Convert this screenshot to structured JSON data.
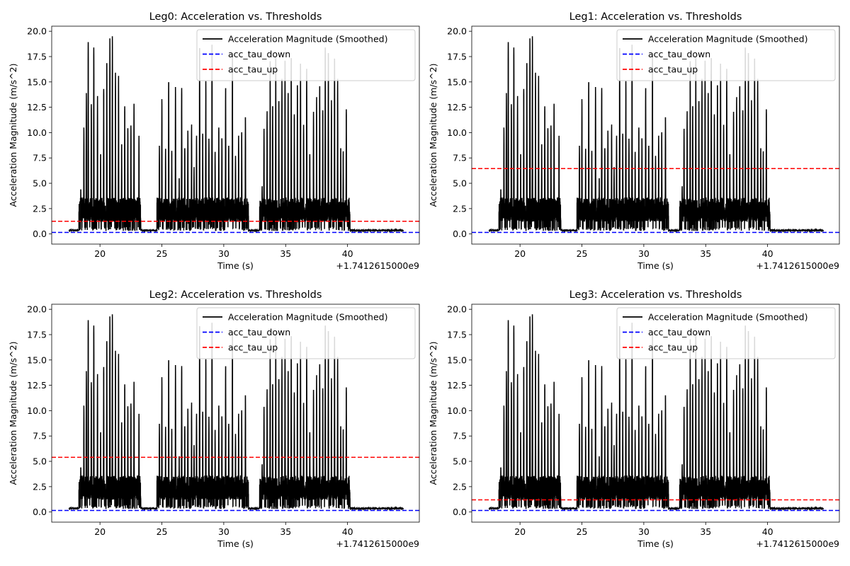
{
  "chart_data": [
    {
      "type": "line",
      "title": "Leg0: Acceleration vs. Thresholds",
      "xlabel": "Time (s)",
      "ylabel": "Acceleration Magnitude (m/s^2)",
      "x_offset_label": "+1.7412615000e9",
      "xlim": [
        16.1,
        45.8
      ],
      "ylim": [
        -1.0,
        20.5
      ],
      "xticks": [
        20,
        25,
        30,
        35,
        40
      ],
      "yticks": [
        0.0,
        2.5,
        5.0,
        7.5,
        10.0,
        12.5,
        15.0,
        17.5,
        20.0
      ],
      "legend": "top-right",
      "series": [
        {
          "name": "Acceleration Magnitude (Smoothed)",
          "color": "#000000",
          "style": "solid",
          "x_range": [
            17.5,
            44.5
          ]
        },
        {
          "name": "acc_tau_down",
          "color": "#0000ff",
          "style": "dashed",
          "value": 0.15
        },
        {
          "name": "acc_tau_up",
          "color": "#ff0000",
          "style": "dashed",
          "value": 1.25
        }
      ]
    },
    {
      "type": "line",
      "title": "Leg1: Acceleration vs. Thresholds",
      "xlabel": "Time (s)",
      "ylabel": "Acceleration Magnitude (m/s^2)",
      "x_offset_label": "+1.7412615000e9",
      "xlim": [
        16.1,
        45.8
      ],
      "ylim": [
        -1.0,
        20.5
      ],
      "xticks": [
        20,
        25,
        30,
        35,
        40
      ],
      "yticks": [
        0.0,
        2.5,
        5.0,
        7.5,
        10.0,
        12.5,
        15.0,
        17.5,
        20.0
      ],
      "legend": "top-right",
      "series": [
        {
          "name": "Acceleration Magnitude (Smoothed)",
          "color": "#000000",
          "style": "solid",
          "x_range": [
            17.5,
            44.5
          ]
        },
        {
          "name": "acc_tau_down",
          "color": "#0000ff",
          "style": "dashed",
          "value": 0.15
        },
        {
          "name": "acc_tau_up",
          "color": "#ff0000",
          "style": "dashed",
          "value": 6.45
        }
      ]
    },
    {
      "type": "line",
      "title": "Leg2: Acceleration vs. Thresholds",
      "xlabel": "Time (s)",
      "ylabel": "Acceleration Magnitude (m/s^2)",
      "x_offset_label": "+1.7412615000e9",
      "xlim": [
        16.1,
        45.8
      ],
      "ylim": [
        -1.0,
        20.5
      ],
      "xticks": [
        20,
        25,
        30,
        35,
        40
      ],
      "yticks": [
        0.0,
        2.5,
        5.0,
        7.5,
        10.0,
        12.5,
        15.0,
        17.5,
        20.0
      ],
      "legend": "top-right",
      "series": [
        {
          "name": "Acceleration Magnitude (Smoothed)",
          "color": "#000000",
          "style": "solid",
          "x_range": [
            17.5,
            44.5
          ]
        },
        {
          "name": "acc_tau_down",
          "color": "#0000ff",
          "style": "dashed",
          "value": 0.15
        },
        {
          "name": "acc_tau_up",
          "color": "#ff0000",
          "style": "dashed",
          "value": 5.4
        }
      ]
    },
    {
      "type": "line",
      "title": "Leg3: Acceleration vs. Thresholds",
      "xlabel": "Time (s)",
      "ylabel": "Acceleration Magnitude (m/s^2)",
      "x_offset_label": "+1.7412615000e9",
      "xlim": [
        16.1,
        45.8
      ],
      "ylim": [
        -1.0,
        20.5
      ],
      "xticks": [
        20,
        25,
        30,
        35,
        40
      ],
      "yticks": [
        0.0,
        2.5,
        5.0,
        7.5,
        10.0,
        12.5,
        15.0,
        17.5,
        20.0
      ],
      "legend": "top-right",
      "series": [
        {
          "name": "Acceleration Magnitude (Smoothed)",
          "color": "#000000",
          "style": "solid",
          "x_range": [
            17.5,
            44.5
          ]
        },
        {
          "name": "acc_tau_down",
          "color": "#0000ff",
          "style": "dashed",
          "value": 0.15
        },
        {
          "name": "acc_tau_up",
          "color": "#ff0000",
          "style": "dashed",
          "value": 1.2
        }
      ]
    }
  ],
  "signal": {
    "baseline": 0.35,
    "peaks": [
      [
        18.45,
        4.4
      ],
      [
        18.7,
        10.5
      ],
      [
        18.9,
        13.9
      ],
      [
        19.05,
        19.1
      ],
      [
        19.3,
        12.8
      ],
      [
        19.5,
        18.4
      ],
      [
        19.8,
        13.6
      ],
      [
        20.05,
        7.9
      ],
      [
        20.3,
        14.3
      ],
      [
        20.55,
        17.0
      ],
      [
        20.8,
        19.3
      ],
      [
        21.0,
        19.5
      ],
      [
        21.25,
        16.1
      ],
      [
        21.5,
        15.6
      ],
      [
        21.75,
        8.9
      ],
      [
        22.0,
        12.6
      ],
      [
        22.25,
        10.5
      ],
      [
        22.5,
        10.7
      ],
      [
        22.75,
        13.0
      ],
      [
        23.15,
        9.8
      ],
      [
        24.8,
        8.7
      ],
      [
        25.0,
        13.3
      ],
      [
        25.3,
        8.4
      ],
      [
        25.55,
        15.1
      ],
      [
        25.8,
        8.2
      ],
      [
        26.1,
        14.5
      ],
      [
        26.4,
        5.5
      ],
      [
        26.6,
        14.4
      ],
      [
        26.85,
        8.5
      ],
      [
        27.1,
        10.2
      ],
      [
        27.4,
        10.8
      ],
      [
        27.6,
        6.6
      ],
      [
        27.8,
        9.7
      ],
      [
        28.05,
        18.5
      ],
      [
        28.3,
        9.9
      ],
      [
        28.55,
        15.2
      ],
      [
        28.8,
        9.4
      ],
      [
        29.05,
        18.9
      ],
      [
        29.3,
        8.1
      ],
      [
        29.6,
        10.5
      ],
      [
        29.85,
        9.5
      ],
      [
        30.15,
        14.5
      ],
      [
        30.4,
        8.7
      ],
      [
        30.7,
        17.8
      ],
      [
        30.95,
        7.8
      ],
      [
        31.2,
        9.7
      ],
      [
        31.45,
        10.1
      ],
      [
        31.75,
        11.6
      ],
      [
        33.1,
        4.7
      ],
      [
        33.25,
        10.5
      ],
      [
        33.5,
        12.1
      ],
      [
        33.75,
        17.2
      ],
      [
        33.95,
        12.7
      ],
      [
        34.2,
        17.4
      ],
      [
        34.45,
        13.2
      ],
      [
        34.7,
        15.3
      ],
      [
        34.95,
        17.3
      ],
      [
        35.2,
        13.9
      ],
      [
        35.45,
        17.5
      ],
      [
        35.7,
        11.8
      ],
      [
        35.95,
        14.8
      ],
      [
        36.2,
        16.8
      ],
      [
        36.45,
        10.9
      ],
      [
        36.7,
        16.3
      ],
      [
        36.95,
        7.9
      ],
      [
        37.25,
        12.2
      ],
      [
        37.5,
        13.5
      ],
      [
        37.75,
        14.7
      ],
      [
        38.0,
        12.2
      ],
      [
        38.2,
        18.4
      ],
      [
        38.45,
        18.0
      ],
      [
        38.7,
        13.2
      ],
      [
        38.95,
        17.5
      ],
      [
        39.2,
        15.3
      ],
      [
        39.45,
        8.5
      ],
      [
        39.65,
        8.2
      ],
      [
        39.9,
        12.3
      ]
    ],
    "active_segments": [
      [
        18.3,
        23.3
      ],
      [
        24.6,
        32.0
      ],
      [
        32.9,
        40.2
      ]
    ],
    "active_floor": 1.2,
    "noise_max": 3.6
  }
}
